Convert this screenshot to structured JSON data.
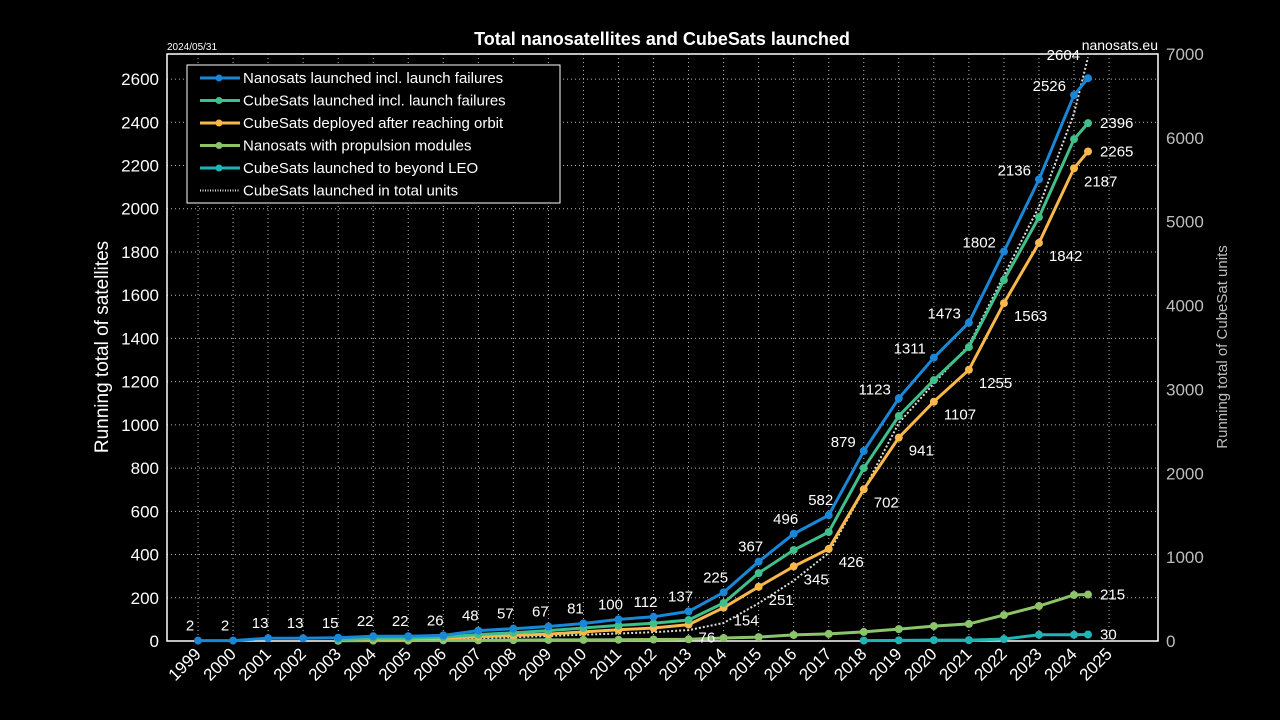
{
  "chart_data": {
    "type": "line",
    "title": "Total nanosatellites and CubeSats launched",
    "date_label": "2024/05/31",
    "source_label": "nanosats.eu",
    "ylabel": "Running total of satellites",
    "ylabel_right": "Running total of CubeSat units",
    "ylim": [
      0,
      2716
    ],
    "ylim_right": [
      0,
      7000
    ],
    "yticks": [
      0,
      200,
      400,
      600,
      800,
      1000,
      1200,
      1400,
      1600,
      1800,
      2000,
      2200,
      2400,
      2600
    ],
    "yticks_right": [
      0,
      1000,
      2000,
      3000,
      4000,
      5000,
      6000,
      7000
    ],
    "xlim": [
      1998.1,
      2025.5
    ],
    "xticks": [
      1999,
      2000,
      2001,
      2002,
      2003,
      2004,
      2005,
      2006,
      2007,
      2008,
      2009,
      2010,
      2011,
      2012,
      2013,
      2014,
      2015,
      2016,
      2017,
      2018,
      2019,
      2020,
      2021,
      2022,
      2023,
      2024,
      2025
    ],
    "xtick_labels": [
      "1999",
      "2000",
      "2001",
      "2002",
      "2003",
      "2004",
      "2005",
      "2006",
      "2007",
      "2008",
      "2009",
      "2010",
      "2011",
      "2012",
      "2013",
      "2014",
      "2015",
      "2016",
      "2017",
      "2018",
      "2019",
      "2020",
      "2021",
      "2022",
      "2023",
      "2024",
      "2025"
    ],
    "grid": true,
    "legend_position": "top-left",
    "series": [
      {
        "name": "Nanosats launched incl. launch failures",
        "color": "#1a86d6",
        "style": "solid",
        "axis": "left",
        "x": [
          1999,
          2000,
          2001,
          2002,
          2003,
          2004,
          2005,
          2006,
          2007,
          2008,
          2009,
          2010,
          2011,
          2012,
          2013,
          2014,
          2015,
          2016,
          2017,
          2018,
          2019,
          2020,
          2021,
          2022,
          2023,
          2024,
          2024.4
        ],
        "values": [
          2,
          2,
          13,
          13,
          15,
          22,
          22,
          26,
          48,
          57,
          67,
          81,
          100,
          112,
          137,
          225,
          367,
          496,
          582,
          879,
          1123,
          1311,
          1473,
          1802,
          2136,
          2526,
          2604
        ],
        "labels": [
          "2",
          "2",
          "13",
          "13",
          "15",
          "22",
          "22",
          "26",
          "48",
          "57",
          "67",
          "81",
          "100",
          "112",
          "137",
          "225",
          "367",
          "496",
          "582",
          "879",
          "1123",
          "1311",
          "1473",
          "1802",
          "2136",
          "2526",
          "2604"
        ]
      },
      {
        "name": "CubeSats launched incl. launch failures",
        "color": "#3fbf8a",
        "style": "solid",
        "axis": "left",
        "x": [
          2003,
          2004,
          2005,
          2006,
          2007,
          2008,
          2009,
          2010,
          2011,
          2012,
          2013,
          2014,
          2015,
          2016,
          2017,
          2018,
          2019,
          2020,
          2021,
          2022,
          2023,
          2024,
          2024.4
        ],
        "values": [
          6,
          13,
          13,
          18,
          30,
          38,
          48,
          60,
          72,
          82,
          97,
          176,
          314,
          421,
          504,
          800,
          1041,
          1207,
          1360,
          1670,
          1961,
          2322,
          2396
        ],
        "labels": [
          "",
          "",
          "",
          "",
          "",
          "",
          "",
          "",
          "",
          "",
          "",
          "",
          "",
          "",
          "",
          "",
          "",
          "",
          "",
          "",
          "",
          "",
          "2396"
        ]
      },
      {
        "name": "CubeSats deployed after reaching orbit",
        "color": "#f9b84a",
        "style": "solid",
        "axis": "left",
        "x": [
          2003,
          2004,
          2005,
          2006,
          2007,
          2008,
          2009,
          2010,
          2011,
          2012,
          2013,
          2014,
          2015,
          2016,
          2017,
          2018,
          2019,
          2020,
          2021,
          2022,
          2023,
          2024,
          2024.4
        ],
        "values": [
          5,
          10,
          10,
          14,
          20,
          26,
          32,
          42,
          52,
          60,
          76,
          154,
          251,
          345,
          426,
          702,
          941,
          1107,
          1255,
          1563,
          1842,
          2187,
          2265
        ],
        "labels": [
          "",
          "",
          "",
          "",
          "",
          "",
          "",
          "",
          "",
          "",
          "76",
          "154",
          "251",
          "345",
          "426",
          "702",
          "941",
          "1107",
          "1255",
          "1563",
          "1842",
          "2187",
          "2265"
        ]
      },
      {
        "name": "Nanosats with propulsion modules",
        "color": "#8cc46b",
        "style": "solid",
        "axis": "left",
        "x": [
          2003,
          2004,
          2005,
          2006,
          2007,
          2008,
          2009,
          2010,
          2011,
          2012,
          2013,
          2014,
          2015,
          2016,
          2017,
          2018,
          2019,
          2020,
          2021,
          2022,
          2023,
          2024,
          2024.4
        ],
        "values": [
          1,
          2,
          2,
          3,
          3,
          4,
          5,
          5,
          6,
          7,
          8,
          14,
          18,
          28,
          33,
          42,
          55,
          69,
          79,
          120,
          162,
          213,
          215
        ],
        "labels": [
          "",
          "",
          "",
          "",
          "",
          "",
          "",
          "",
          "",
          "",
          "",
          "",
          "",
          "",
          "",
          "",
          "",
          "",
          "",
          "",
          "",
          "",
          "215"
        ]
      },
      {
        "name": "CubeSats launched to beyond LEO",
        "color": "#1fb5b5",
        "style": "solid",
        "axis": "left",
        "x": [
          2018,
          2019,
          2020,
          2021,
          2022,
          2023,
          2024,
          2024.4
        ],
        "values": [
          2,
          3,
          4,
          4,
          9,
          29,
          29,
          30
        ],
        "labels": [
          "",
          "",
          "",
          "",
          "",
          "",
          "",
          "30"
        ]
      },
      {
        "name": "CubeSats launched in total units",
        "color": "#dddddd",
        "style": "dotted",
        "axis": "right",
        "x": [
          2006,
          2007,
          2008,
          2009,
          2010,
          2011,
          2012,
          2013,
          2014,
          2015,
          2016,
          2017,
          2018,
          2019,
          2020,
          2021,
          2022,
          2023,
          2024,
          2024.4
        ],
        "values": [
          10,
          30,
          45,
          60,
          75,
          90,
          105,
          130,
          215,
          450,
          720,
          1050,
          1800,
          2600,
          3070,
          3530,
          4360,
          5180,
          6290,
          6960
        ],
        "labels": []
      }
    ]
  }
}
